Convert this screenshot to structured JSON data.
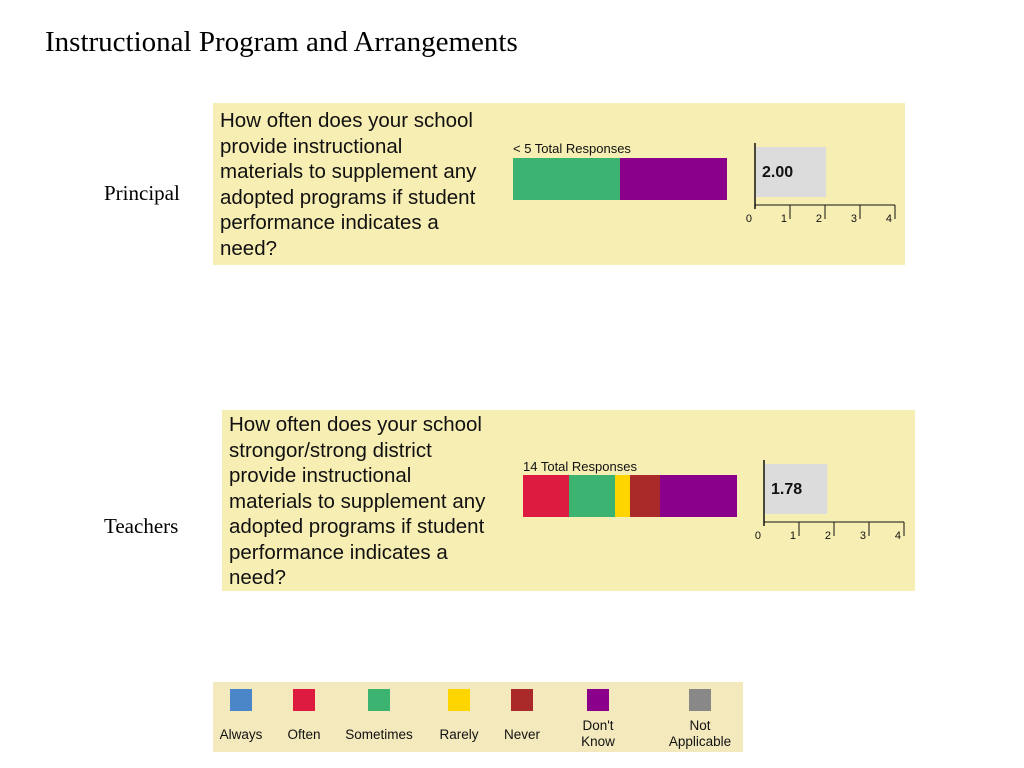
{
  "title": "Instructional Program and Arrangements",
  "legend": {
    "items": [
      {
        "label": "Always",
        "color": "#4a86c8"
      },
      {
        "label": "Often",
        "color": "#dd1a3f"
      },
      {
        "label": "Sometimes",
        "color": "#3cb371"
      },
      {
        "label": "Rarely",
        "color": "#ffd500"
      },
      {
        "label": "Never",
        "color": "#aa2a2a"
      },
      {
        "label": "Don't\nKnow",
        "color": "#8b008b"
      },
      {
        "label": "Not\nApplicable",
        "color": "#888888"
      }
    ]
  },
  "chart_data": [
    {
      "type": "bar",
      "respondent": "Principal",
      "question": "How often does your school\nprovide instructional\nmaterials to supplement any\nadopted programs if student\nperformance indicates a\nneed?",
      "responses_label": "< 5 Total Responses",
      "segments": [
        {
          "category": "Sometimes",
          "value": 50
        },
        {
          "category": "Don't Know",
          "value": 50
        }
      ],
      "mean_value": 2.0,
      "mean_label": "2.00",
      "gauge_ticks": [
        "0",
        "1",
        "2",
        "3",
        "4"
      ],
      "gauge_range": [
        0,
        4
      ]
    },
    {
      "type": "bar",
      "respondent": "Teachers",
      "question": "How often does your school\nstrongor/strong district\nprovide instructional\nmaterials to supplement any\nadopted programs if student\nperformance indicates a\nneed?",
      "responses_label": "14 Total Responses",
      "segments": [
        {
          "category": "Often",
          "value": 21.4
        },
        {
          "category": "Sometimes",
          "value": 21.4
        },
        {
          "category": "Rarely",
          "value": 7.1
        },
        {
          "category": "Never",
          "value": 14.3
        },
        {
          "category": "Don't Know",
          "value": 35.7
        }
      ],
      "mean_value": 1.78,
      "mean_label": "1.78",
      "gauge_ticks": [
        "0",
        "1",
        "2",
        "3",
        "4"
      ],
      "gauge_range": [
        0,
        4
      ]
    }
  ]
}
